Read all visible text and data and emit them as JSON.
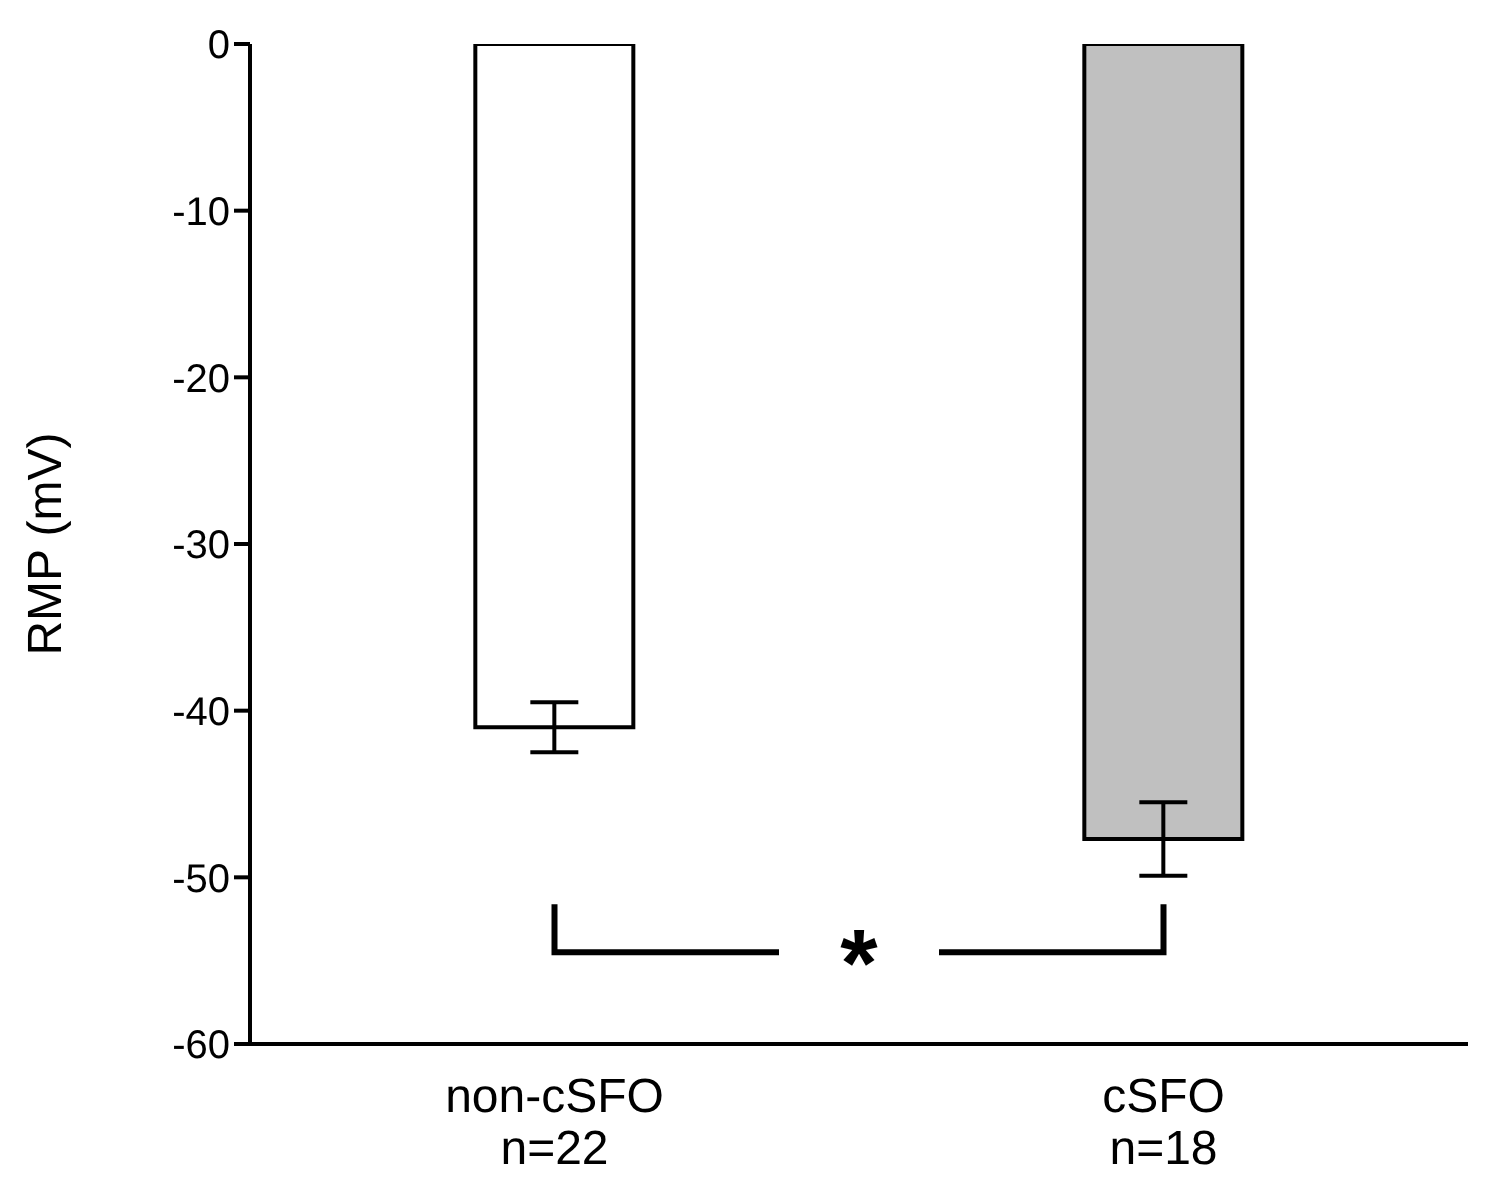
{
  "chart_data": {
    "type": "bar",
    "ylabel": "RMP (mV)",
    "categories": [
      "non-cSFO\nn=22",
      "cSFO\nn=18"
    ],
    "values": [
      -41.0,
      -47.7
    ],
    "colors": [
      "#ffffff",
      "#c0c0c0"
    ],
    "errors": [
      1.5,
      2.2
    ],
    "ylim": [
      -60,
      0
    ],
    "yticks": [
      -60,
      -50,
      -40,
      -30,
      -20,
      -10,
      0
    ],
    "annotations": [
      "*"
    ]
  }
}
